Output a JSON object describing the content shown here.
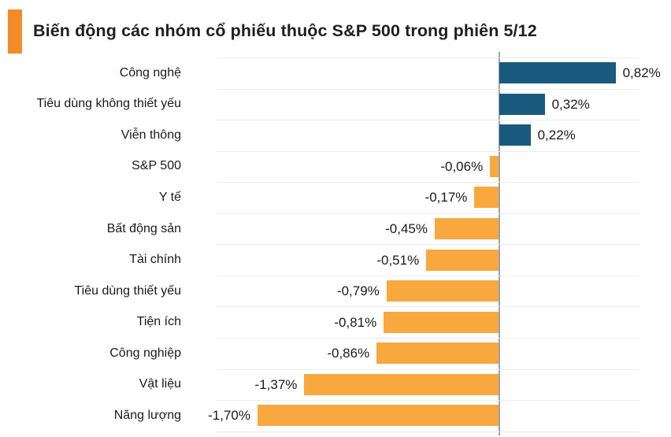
{
  "header": {
    "title": "Biến động các nhóm cổ phiếu thuộc S&P 500 trong phiên 5/12",
    "accent_color": "#F28C28"
  },
  "chart_data": {
    "type": "bar",
    "orientation": "horizontal",
    "title": "Biến động các nhóm cổ phiếu thuộc S&P 500 trong phiên 5/12",
    "categories": [
      "Công nghệ",
      "Tiêu dùng không thiết yếu",
      "Viễn thông",
      "S&P 500",
      "Y tế",
      "Bất động sản",
      "Tài chính",
      "Tiêu dùng thiết yếu",
      "Tiện ích",
      "Công nghiệp",
      "Vật liệu",
      "Năng lượng"
    ],
    "values": [
      0.82,
      0.32,
      0.22,
      -0.06,
      -0.17,
      -0.45,
      -0.51,
      -0.79,
      -0.81,
      -0.86,
      -1.37,
      -1.7
    ],
    "value_labels": [
      "0,82%",
      "0,32%",
      "0,22%",
      "-0,06%",
      "-0,17%",
      "-0,45%",
      "-0,51%",
      "-0,79%",
      "-0,81%",
      "-0,86%",
      "-1,37%",
      "-1,70%"
    ],
    "unit": "%",
    "xlim": [
      -2,
      1
    ],
    "positive_color": "#1A5A7E",
    "negative_color": "#F8A83E",
    "grid": "horizontal row separators, zero line only on x",
    "gridline_color": "#ececec",
    "zero_line_color": "#9aa2a9",
    "legend": "none",
    "value_label_position": "outside bar end"
  }
}
